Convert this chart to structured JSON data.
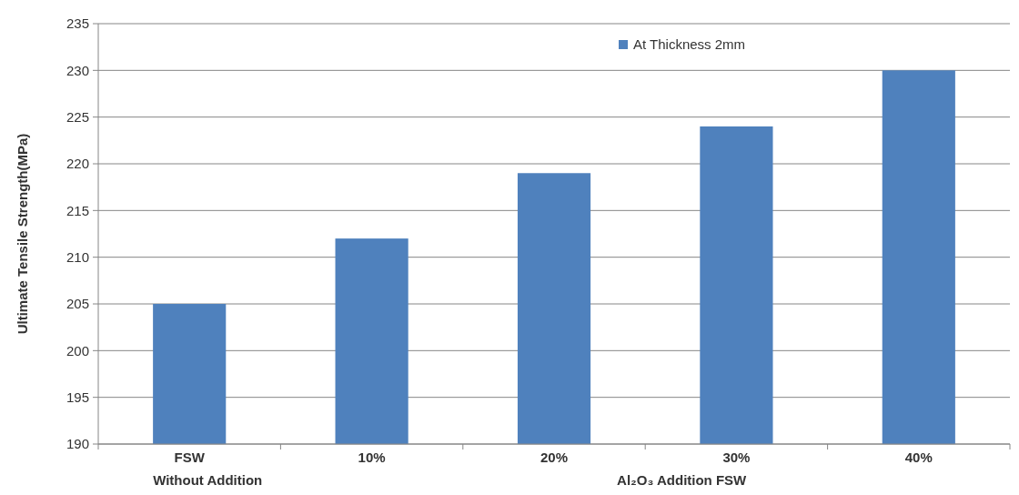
{
  "chart_data": {
    "type": "bar",
    "ylabel": "Ultimate Tensile Strength(MPa)",
    "categories": [
      "FSW",
      "10%",
      "20%",
      "30%",
      "40%"
    ],
    "series": [
      {
        "name": "At Thickness 2mm",
        "color": "#4f81bd",
        "values": [
          205,
          212,
          219,
          224,
          230
        ]
      }
    ],
    "ylim": [
      190,
      235
    ],
    "yticks": [
      190,
      195,
      200,
      205,
      210,
      215,
      220,
      225,
      230,
      235
    ],
    "grid": "y",
    "legend": "top right",
    "annotations": [
      "Without Addition",
      "Al₂O₃ Addition FSW"
    ]
  }
}
